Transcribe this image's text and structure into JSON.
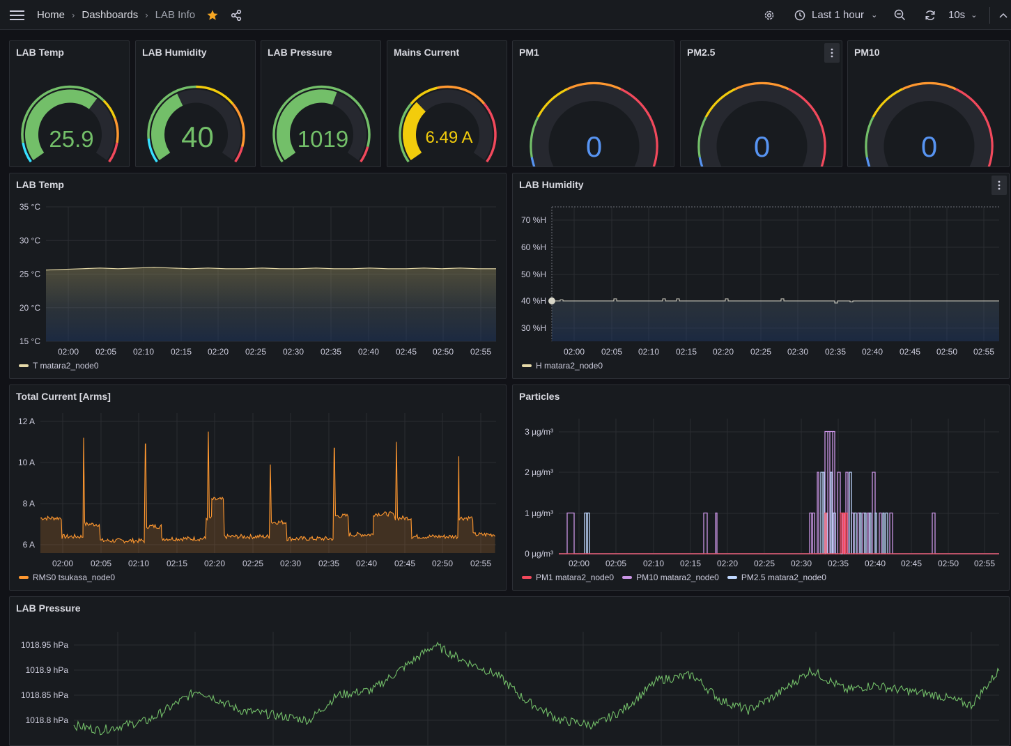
{
  "nav": {
    "breadcrumbs": [
      "Home",
      "Dashboards",
      "LAB Info"
    ],
    "time_range": "Last 1 hour",
    "refresh": "10s"
  },
  "colors": {
    "green": "#73bf69",
    "yellow": "#f2cc0c",
    "orange": "#ff9830",
    "red": "#f2495c",
    "blue": "#5794f2",
    "cyan": "#37e0ff",
    "purple": "#ca95e5",
    "lightblue": "#c0d8ff",
    "temp_line": "#e5d9a8",
    "star": "#f5a623"
  },
  "gauges": [
    {
      "title": "LAB Temp",
      "value": 25.9,
      "display": "25.9",
      "min": 0,
      "max": 40,
      "color": "#73bf69",
      "band": "temp"
    },
    {
      "title": "LAB Humidity",
      "value": 40,
      "display": "40",
      "min": 0,
      "max": 100,
      "color": "#73bf69",
      "band": "hum"
    },
    {
      "title": "LAB Pressure",
      "value": 1019,
      "display": "1019",
      "min": 990,
      "max": 1040,
      "color": "#73bf69",
      "band": "press"
    },
    {
      "title": "Mains Current",
      "value": 6.49,
      "display": "6.49 A",
      "min": 0,
      "max": 20,
      "color": "#f2cc0c",
      "band": "curr"
    },
    {
      "title": "PM1",
      "value": 0,
      "display": "0",
      "min": 0,
      "max": 100,
      "color": "#5794f2",
      "band": "pm"
    },
    {
      "title": "PM2.5",
      "value": 0,
      "display": "0",
      "min": 0,
      "max": 100,
      "color": "#5794f2",
      "band": "pm"
    },
    {
      "title": "PM10",
      "value": 0,
      "display": "0",
      "min": 0,
      "max": 100,
      "color": "#5794f2",
      "band": "pm"
    }
  ],
  "time_ticks": [
    "02:00",
    "02:05",
    "02:10",
    "02:15",
    "02:20",
    "02:25",
    "02:30",
    "02:35",
    "02:40",
    "02:45",
    "02:50",
    "02:55"
  ],
  "chart_data": [
    {
      "type": "area",
      "title": "LAB Temp",
      "y_ticks": [
        "35 °C",
        "30 °C",
        "25 °C",
        "20 °C",
        "15 °C"
      ],
      "ylim": [
        15,
        35
      ],
      "series": [
        {
          "name": "T matara2_node0",
          "color": "#e5d9a8",
          "values": [
            25.6,
            25.7,
            25.8,
            25.9,
            25.8,
            25.9,
            26.0,
            25.9,
            25.8,
            25.9,
            25.8,
            25.8,
            25.9,
            25.8,
            25.8,
            25.9,
            25.8,
            25.8,
            25.9,
            25.8,
            25.8,
            25.9,
            25.8,
            25.9,
            25.8,
            25.8
          ]
        }
      ]
    },
    {
      "type": "area",
      "title": "LAB Humidity",
      "y_ticks": [
        "70 %H",
        "60 %H",
        "50 %H",
        "40 %H",
        "30 %H"
      ],
      "ylim": [
        25,
        75
      ],
      "series": [
        {
          "name": "H matara2_node0",
          "color": "#e5d9a8",
          "values": [
            40,
            40,
            40,
            40,
            40,
            40,
            40,
            40,
            40,
            40,
            40,
            40
          ]
        }
      ]
    },
    {
      "type": "area",
      "title": "Total Current [Arms]",
      "y_ticks": [
        "12 A",
        "10 A",
        "8 A",
        "6 A"
      ],
      "ylim": [
        5.6,
        12.4
      ],
      "series": [
        {
          "name": "RMS0 tsukasa_node0",
          "color": "#ff9830"
        }
      ]
    },
    {
      "type": "bar",
      "title": "Particles",
      "y_ticks": [
        "3 µg/m³",
        "2 µg/m³",
        "1 µg/m³",
        "0 µg/m³"
      ],
      "ylim": [
        0,
        3.4
      ],
      "series": [
        {
          "name": "PM1 matara2_node0",
          "color": "#f2495c"
        },
        {
          "name": "PM10 matara2_node0",
          "color": "#ca95e5"
        },
        {
          "name": "PM2.5 matara2_node0",
          "color": "#c0d8ff"
        }
      ]
    },
    {
      "type": "line",
      "title": "LAB Pressure",
      "y_ticks": [
        "1018.95 hPa",
        "1018.9 hPa",
        "1018.85 hPa",
        "1018.8 hPa"
      ],
      "ylim": [
        1018.76,
        1018.99
      ],
      "series": [
        {
          "name": "LAB Pressure",
          "color": "#73bf69"
        }
      ]
    }
  ]
}
